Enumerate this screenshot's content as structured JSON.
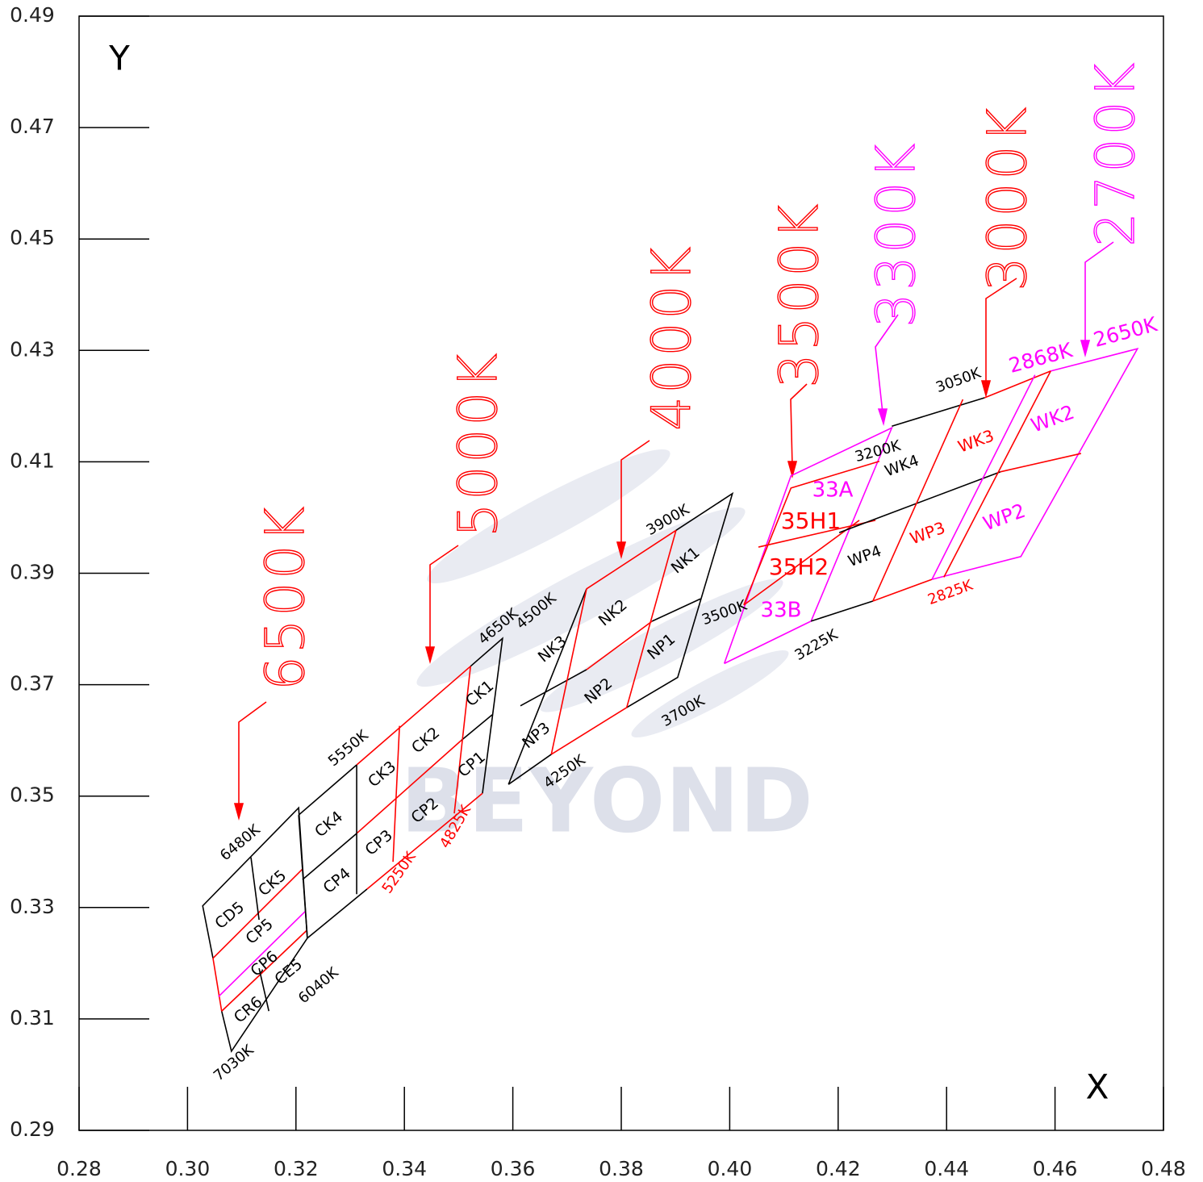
{
  "chart_data": {
    "type": "bin-diagram",
    "x_label": "X",
    "y_label": "Y",
    "watermark": "BEYOND",
    "xlim": [
      0.28,
      0.48
    ],
    "ylim": [
      0.29,
      0.49
    ],
    "xticks": [
      0.28,
      {
        "value": 0.3,
        "label": "0.30"
      },
      0.32,
      0.34,
      0.36,
      0.38,
      {
        "value": 0.4,
        "label": "0.40"
      },
      0.42,
      0.44,
      0.46,
      0.48
    ],
    "yticks": [
      0.29,
      0.31,
      0.33,
      0.35,
      0.37,
      0.39,
      0.41,
      0.43,
      0.45,
      0.47,
      0.49
    ],
    "lines": [
      {
        "color": "#000000",
        "points": [
          [
            0.3047,
            0.3209
          ],
          [
            0.3028,
            0.3303
          ],
          [
            0.3205,
            0.3479
          ],
          [
            0.3221,
            0.3245
          ],
          [
            0.3081,
            0.3042
          ],
          [
            0.3063,
            0.3114
          ]
        ]
      },
      {
        "color": "#ff0000",
        "points": [
          [
            0.3047,
            0.3209
          ],
          [
            0.3063,
            0.3114
          ]
        ]
      },
      {
        "color": "#ff0000",
        "points": [
          [
            0.3047,
            0.3209
          ],
          [
            0.3212,
            0.3369
          ]
        ]
      },
      {
        "color": "#ff0000",
        "points": [
          [
            0.3063,
            0.3114
          ],
          [
            0.322,
            0.3259
          ]
        ]
      },
      {
        "color": "#ff00ff",
        "points": [
          [
            0.3057,
            0.314
          ],
          [
            0.3217,
            0.3293
          ]
        ]
      },
      {
        "color": "#000000",
        "points": [
          [
            0.3117,
            0.339
          ],
          [
            0.3132,
            0.3278
          ]
        ]
      },
      {
        "color": "#000000",
        "points": [
          [
            0.3132,
            0.3191
          ],
          [
            0.315,
            0.3114
          ]
        ]
      },
      {
        "color": "#000000",
        "points": [
          [
            0.3205,
            0.3466
          ],
          [
            0.3312,
            0.3556
          ]
        ]
      },
      {
        "color": "#ff0000",
        "points": [
          [
            0.3312,
            0.3556
          ],
          [
            0.3522,
            0.3733
          ]
        ]
      },
      {
        "color": "#000000",
        "points": [
          [
            0.3522,
            0.3733
          ],
          [
            0.3581,
            0.3783
          ],
          [
            0.3544,
            0.3505
          ]
        ]
      },
      {
        "color": "#000000",
        "points": [
          [
            0.3221,
            0.3245
          ],
          [
            0.3331,
            0.3333
          ]
        ]
      },
      {
        "color": "#ff0000",
        "points": [
          [
            0.3331,
            0.3333
          ],
          [
            0.3544,
            0.3505
          ]
        ]
      },
      {
        "color": "#000000",
        "points": [
          [
            0.3205,
            0.3466
          ],
          [
            0.3221,
            0.3245
          ]
        ]
      },
      {
        "color": "#000000",
        "points": [
          [
            0.3212,
            0.335
          ],
          [
            0.3312,
            0.3433
          ]
        ]
      },
      {
        "color": "#ff0000",
        "points": [
          [
            0.3312,
            0.3433
          ],
          [
            0.3505,
            0.36
          ]
        ]
      },
      {
        "color": "#000000",
        "points": [
          [
            0.3505,
            0.36
          ],
          [
            0.3562,
            0.3646
          ]
        ]
      },
      {
        "color": "#000000",
        "points": [
          [
            0.3312,
            0.3556
          ],
          [
            0.3312,
            0.3324
          ]
        ]
      },
      {
        "color": "#ff0000",
        "points": [
          [
            0.3391,
            0.3626
          ],
          [
            0.3379,
            0.3382
          ]
        ]
      },
      {
        "color": "#ff0000",
        "points": [
          [
            0.3522,
            0.3733
          ],
          [
            0.3492,
            0.3469
          ]
        ]
      },
      {
        "color": "#000000",
        "points": [
          [
            0.3592,
            0.3521
          ],
          [
            0.3736,
            0.3872
          ]
        ]
      },
      {
        "color": "#ff0000",
        "points": [
          [
            0.3736,
            0.3872
          ],
          [
            0.3901,
            0.3977
          ]
        ]
      },
      {
        "color": "#000000",
        "points": [
          [
            0.3901,
            0.3977
          ],
          [
            0.4005,
            0.4043
          ],
          [
            0.3904,
            0.3713
          ],
          [
            0.381,
            0.3659
          ]
        ]
      },
      {
        "color": "#ff0000",
        "points": [
          [
            0.381,
            0.3659
          ],
          [
            0.3671,
            0.3575
          ]
        ]
      },
      {
        "color": "#000000",
        "points": [
          [
            0.3671,
            0.3575
          ],
          [
            0.3592,
            0.3521
          ]
        ]
      },
      {
        "color": "#000000",
        "points": [
          [
            0.3614,
            0.3662
          ],
          [
            0.3736,
            0.3727
          ]
        ]
      },
      {
        "color": "#ff0000",
        "points": [
          [
            0.3736,
            0.3727
          ],
          [
            0.3857,
            0.3814
          ]
        ]
      },
      {
        "color": "#000000",
        "points": [
          [
            0.3857,
            0.3814
          ],
          [
            0.3946,
            0.3854
          ]
        ]
      },
      {
        "color": "#ff0000",
        "points": [
          [
            0.3736,
            0.3872
          ],
          [
            0.3671,
            0.3575
          ]
        ]
      },
      {
        "color": "#ff0000",
        "points": [
          [
            0.3901,
            0.3977
          ],
          [
            0.381,
            0.3659
          ]
        ]
      },
      {
        "color": "#ff00ff",
        "points": [
          [
            0.399,
            0.3738
          ],
          [
            0.4113,
            0.4075
          ],
          [
            0.4299,
            0.4161
          ],
          [
            0.415,
            0.3814
          ],
          [
            0.399,
            0.3738
          ]
        ]
      },
      {
        "color": "#ff0000",
        "points": [
          [
            0.4026,
            0.3843
          ],
          [
            0.4113,
            0.4053
          ],
          [
            0.4276,
            0.4101
          ]
        ]
      },
      {
        "color": "#ff0000",
        "points": [
          [
            0.4026,
            0.3843
          ],
          [
            0.4239,
            0.3995
          ]
        ]
      },
      {
        "color": "#ff0000",
        "points": [
          [
            0.4053,
            0.3947
          ],
          [
            0.4269,
            0.3995
          ]
        ]
      },
      {
        "color": "#000000",
        "points": [
          [
            0.4299,
            0.4164
          ],
          [
            0.447,
            0.4215
          ]
        ]
      },
      {
        "color": "#ff0000",
        "points": [
          [
            0.447,
            0.4215
          ],
          [
            0.4592,
            0.4263
          ]
        ]
      },
      {
        "color": "#ff00ff",
        "points": [
          [
            0.4592,
            0.4263
          ],
          [
            0.4752,
            0.4303
          ],
          [
            0.4537,
            0.393
          ],
          [
            0.4373,
            0.3889
          ]
        ]
      },
      {
        "color": "#ff0000",
        "points": [
          [
            0.4373,
            0.3889
          ],
          [
            0.4264,
            0.385
          ]
        ]
      },
      {
        "color": "#000000",
        "points": [
          [
            0.4264,
            0.385
          ],
          [
            0.415,
            0.3814
          ]
        ]
      },
      {
        "color": "#000000",
        "points": [
          [
            0.4202,
            0.3973
          ],
          [
            0.4499,
            0.4082
          ]
        ]
      },
      {
        "color": "#ff0000",
        "points": [
          [
            0.4499,
            0.4082
          ],
          [
            0.4648,
            0.4115
          ]
        ]
      },
      {
        "color": "#ff0000",
        "points": [
          [
            0.443,
            0.4212
          ],
          [
            0.4264,
            0.385
          ]
        ]
      },
      {
        "color": "#ff0000",
        "points": [
          [
            0.4592,
            0.4263
          ],
          [
            0.4395,
            0.3893
          ]
        ]
      },
      {
        "color": "#ff00ff",
        "points": [
          [
            0.4563,
            0.4256
          ],
          [
            0.4373,
            0.3889
          ]
        ]
      }
    ],
    "bins": [
      {
        "name": "CD5",
        "color": "#000000"
      },
      {
        "name": "CK5",
        "color": "#000000"
      },
      {
        "name": "CP5",
        "color": "#000000"
      },
      {
        "name": "CP6",
        "color": "#000000"
      },
      {
        "name": "CR6",
        "color": "#000000"
      },
      {
        "name": "CE5",
        "color": "#000000"
      },
      {
        "name": "CK4",
        "color": "#000000"
      },
      {
        "name": "CP4",
        "color": "#000000"
      },
      {
        "name": "CK3",
        "color": "#000000"
      },
      {
        "name": "CP3",
        "color": "#000000"
      },
      {
        "name": "CK2",
        "color": "#000000"
      },
      {
        "name": "CP2",
        "color": "#000000"
      },
      {
        "name": "CK1",
        "color": "#000000"
      },
      {
        "name": "CP1",
        "color": "#000000"
      },
      {
        "name": "NK3",
        "color": "#000000"
      },
      {
        "name": "NP3",
        "color": "#000000"
      },
      {
        "name": "NK2",
        "color": "#000000"
      },
      {
        "name": "NP2",
        "color": "#000000"
      },
      {
        "name": "NK1",
        "color": "#000000"
      },
      {
        "name": "NP1",
        "color": "#000000"
      },
      {
        "name": "33A",
        "color": "#ff00ff"
      },
      {
        "name": "35H1",
        "color": "#ff0000"
      },
      {
        "name": "35H2",
        "color": "#ff0000"
      },
      {
        "name": "33B",
        "color": "#ff00ff"
      },
      {
        "name": "WK4",
        "color": "#000000"
      },
      {
        "name": "WP4",
        "color": "#000000"
      },
      {
        "name": "WK3",
        "color": "#ff0000"
      },
      {
        "name": "WP3",
        "color": "#ff0000"
      },
      {
        "name": "WK2",
        "color": "#ff00ff"
      },
      {
        "name": "WP2",
        "color": "#ff00ff"
      }
    ],
    "cct_labels": [
      {
        "text": "6480K",
        "color": "#000000"
      },
      {
        "text": "7030K",
        "color": "#000000"
      },
      {
        "text": "6040K",
        "color": "#000000"
      },
      {
        "text": "5550K",
        "color": "#000000"
      },
      {
        "text": "4650K",
        "color": "#000000"
      },
      {
        "text": "5250K",
        "color": "#ff0000"
      },
      {
        "text": "4825K",
        "color": "#ff0000"
      },
      {
        "text": "4500K",
        "color": "#000000"
      },
      {
        "text": "3900K",
        "color": "#000000"
      },
      {
        "text": "4250K",
        "color": "#000000"
      },
      {
        "text": "3700K",
        "color": "#000000"
      },
      {
        "text": "3500K",
        "color": "#000000"
      },
      {
        "text": "3225K",
        "color": "#000000"
      },
      {
        "text": "3200K",
        "color": "#000000"
      },
      {
        "text": "3050K",
        "color": "#000000"
      },
      {
        "text": "2825K",
        "color": "#ff0000"
      },
      {
        "text": "2868K",
        "color": "#ff00ff"
      },
      {
        "text": "2650K",
        "color": "#ff00ff"
      }
    ],
    "cct_callouts": [
      {
        "text": "6500K",
        "color": "#ff0000"
      },
      {
        "text": "5000K",
        "color": "#ff0000"
      },
      {
        "text": "4000K",
        "color": "#ff0000"
      },
      {
        "text": "3500K",
        "color": "#ff0000"
      },
      {
        "text": "3300K",
        "color": "#ff00ff"
      },
      {
        "text": "3000K",
        "color": "#ff0000"
      },
      {
        "text": "2700K",
        "color": "#ff00ff"
      }
    ]
  }
}
